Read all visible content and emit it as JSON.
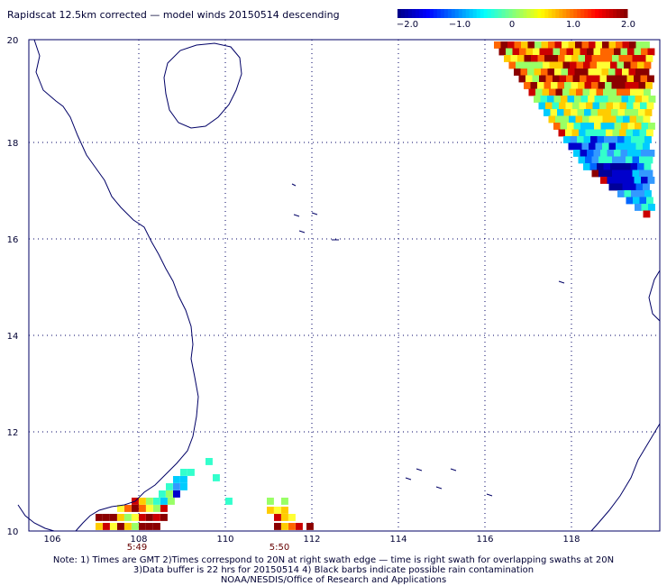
{
  "title": "Rapidscat 12.5km corrected — model winds 20150514 descending",
  "colorbar": {
    "tick_labels": [
      "−2.0",
      "−1.0",
      "0",
      "1.0",
      "2.0"
    ],
    "min": -2.0,
    "max": 2.0,
    "colors": [
      "#00008b",
      "#0000ff",
      "#0080ff",
      "#00ffff",
      "#80ff80",
      "#ffff00",
      "#ff8000",
      "#ff0000",
      "#8b0000"
    ]
  },
  "axes": {
    "lon_labels": [
      "106",
      "108",
      "110",
      "112",
      "114",
      "116",
      "118"
    ],
    "lat_labels": [
      "20",
      "18",
      "16",
      "14",
      "12",
      "10"
    ]
  },
  "swath_times": [
    "5:49",
    "5:50"
  ],
  "notes": [
    "Note: 1) Times are GMT 2)Times correspond to 20N at right swath edge — time is right swath for overlapping swaths at 20N",
    "3)Data buffer is 22 hrs for 20150514 4) Black barbs indicate possible rain contamination",
    "NOAA/NESDIS/Office of Research and Applications"
  ],
  "colors": {
    "coast": "#000066",
    "grid": "#000066",
    "text": "#000033",
    "time": "#660000"
  }
}
